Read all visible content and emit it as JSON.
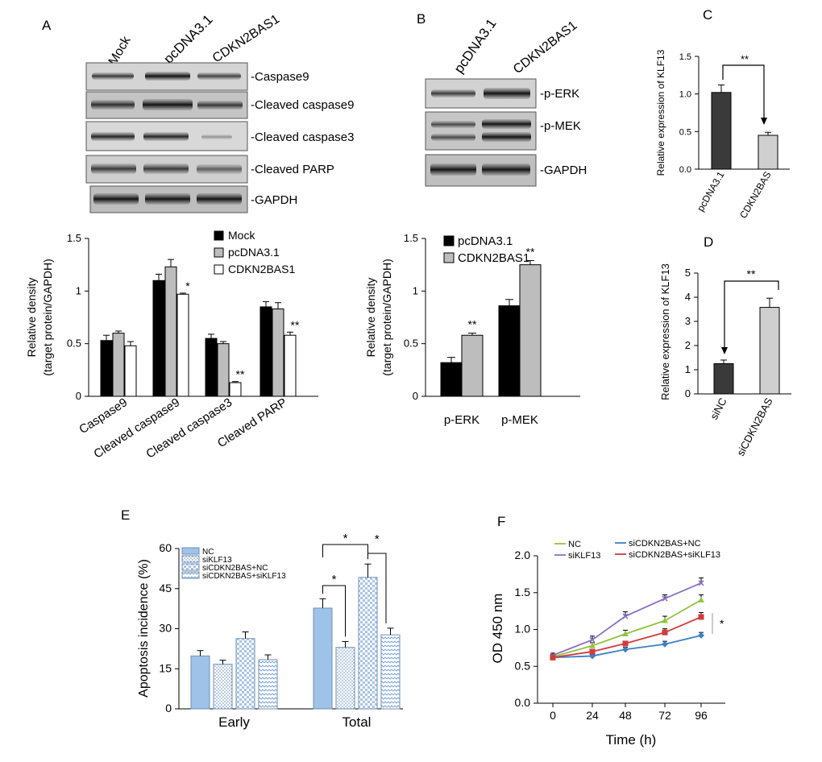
{
  "panel_labels": {
    "A": "A",
    "B": "B",
    "C": "C",
    "D": "D",
    "E": "E",
    "F": "F"
  },
  "blot_a": {
    "lanes": [
      "Mock",
      "pcDNA3.1",
      "CDKN2BAS1"
    ],
    "bands": [
      "-Caspase9",
      "-Cleaved caspase9",
      "-Cleaved caspase3",
      "-Cleaved PARP",
      "-GAPDH"
    ]
  },
  "blot_b": {
    "lanes": [
      "pcDNA3.1",
      "CDKN2BAS1"
    ],
    "bands": [
      "-p-ERK",
      "-p-MEK",
      "-GAPDH"
    ]
  },
  "colors": {
    "black": "#000000",
    "gray": "#bdbdbd",
    "white": "#ffffff",
    "dark": "#3a3a3a",
    "light": "#cfcfcf",
    "blue": "#9fc3e8",
    "nc": "#8dc63f",
    "siklf13": "#8a6fc4",
    "sicdkn_nc": "#3d7fc4",
    "sicdkn_siklf13": "#d23b3b"
  },
  "chart_data": [
    {
      "id": "A",
      "type": "bar",
      "categories": [
        "Caspase9",
        "Cleaved caspase9",
        "Cleaved caspase3",
        "Cleaved PARP"
      ],
      "series": [
        {
          "name": "Mock",
          "values": [
            0.53,
            1.1,
            0.55,
            0.85
          ],
          "errors": [
            0.05,
            0.06,
            0.04,
            0.05
          ]
        },
        {
          "name": "pcDNA3.1",
          "values": [
            0.6,
            1.23,
            0.5,
            0.83
          ],
          "errors": [
            0.02,
            0.07,
            0.02,
            0.06
          ]
        },
        {
          "name": "CDKN2BAS1",
          "values": [
            0.48,
            0.97,
            0.13,
            0.58
          ],
          "errors": [
            0.04,
            0.01,
            0.01,
            0.03
          ]
        }
      ],
      "annotations": [
        {
          "category": 1,
          "series": 2,
          "text": "*"
        },
        {
          "category": 2,
          "series": 2,
          "text": "**"
        },
        {
          "category": 3,
          "series": 2,
          "text": "**"
        }
      ],
      "ylabel_line1": "Relative density",
      "ylabel_line2": "(target protein/GAPDH)",
      "ylim": [
        0,
        1.5
      ],
      "yticks": [
        "0",
        "0.5",
        "1",
        "1.5"
      ],
      "legend": "top-right"
    },
    {
      "id": "B",
      "type": "bar",
      "categories": [
        "p-ERK",
        "p-MEK"
      ],
      "series": [
        {
          "name": "pcDNA3.1",
          "values": [
            0.32,
            0.86
          ],
          "errors": [
            0.05,
            0.06
          ]
        },
        {
          "name": "CDKN2BAS1",
          "values": [
            0.58,
            1.25
          ],
          "errors": [
            0.02,
            0.04
          ]
        }
      ],
      "annotations": [
        {
          "category": 0,
          "series": 1,
          "text": "**"
        },
        {
          "category": 1,
          "series": 1,
          "text": "**"
        }
      ],
      "ylabel_line1": "Relative density",
      "ylabel_line2": "(target protein/GAPDH)",
      "ylim": [
        0,
        1.5
      ],
      "yticks": [
        "0",
        "0.5",
        "1",
        "1.5"
      ],
      "legend": "top-left"
    },
    {
      "id": "C",
      "type": "bar",
      "categories": [
        "pcDNA3.1",
        "CDKN2BAS"
      ],
      "values": [
        1.02,
        0.45
      ],
      "errors": [
        0.1,
        0.04
      ],
      "ylabel": "Relative expression of KLF13",
      "ylim": [
        0,
        1.5
      ],
      "yticks": [
        "0.0",
        "0.5",
        "1.0",
        "1.5"
      ],
      "significance": "**"
    },
    {
      "id": "D",
      "type": "bar",
      "categories": [
        "siNC",
        "siCDKN2BAS"
      ],
      "values": [
        1.25,
        3.58
      ],
      "errors": [
        0.15,
        0.38
      ],
      "ylabel": "Relative expression of KLF13",
      "ylim": [
        0,
        5
      ],
      "yticks": [
        "0",
        "1",
        "2",
        "3",
        "4",
        "5"
      ],
      "significance": "**"
    },
    {
      "id": "E",
      "type": "bar",
      "categories": [
        "Early",
        "Total"
      ],
      "series": [
        {
          "name": "NC",
          "values": [
            19.8,
            37.7
          ],
          "errors": [
            2.0,
            3.5
          ]
        },
        {
          "name": "siKLF13",
          "values": [
            16.7,
            23.0
          ],
          "errors": [
            1.5,
            2.2
          ]
        },
        {
          "name": "siCDKN2BAS+NC",
          "values": [
            26.3,
            49.2
          ],
          "errors": [
            2.5,
            5.0
          ]
        },
        {
          "name": "siCDKN2BAS+siKLF13",
          "values": [
            18.4,
            27.7
          ],
          "errors": [
            1.8,
            2.5
          ]
        }
      ],
      "ylabel": "Apoptosis incidence (%)",
      "ylim": [
        0,
        60
      ],
      "yticks": [
        "0",
        "15",
        "30",
        "45",
        "60"
      ],
      "significance": [
        "*",
        "*",
        "*"
      ],
      "legend": "top-left"
    },
    {
      "id": "F",
      "type": "line",
      "x": [
        0,
        24,
        48,
        72,
        96
      ],
      "xticks": [
        "0",
        "24",
        "48",
        "72",
        "96"
      ],
      "series": [
        {
          "name": "NC",
          "values": [
            0.63,
            0.78,
            0.94,
            1.12,
            1.4
          ],
          "errors": [
            0.03,
            0.04,
            0.05,
            0.06,
            0.07
          ]
        },
        {
          "name": "siKLF13",
          "values": [
            0.65,
            0.86,
            1.18,
            1.42,
            1.63
          ],
          "errors": [
            0.03,
            0.05,
            0.06,
            0.05,
            0.07
          ]
        },
        {
          "name": "siCDKN2BAS+NC",
          "values": [
            0.62,
            0.64,
            0.73,
            0.8,
            0.92
          ],
          "errors": [
            0.02,
            0.02,
            0.03,
            0.04,
            0.04
          ]
        },
        {
          "name": "siCDKN2BAS+siKLF13",
          "values": [
            0.62,
            0.7,
            0.81,
            0.96,
            1.17
          ],
          "errors": [
            0.02,
            0.03,
            0.03,
            0.05,
            0.06
          ]
        }
      ],
      "xlabel": "Time (h)",
      "ylabel": "OD 450 nm",
      "ylim": [
        0,
        2.0
      ],
      "yticks": [
        "0.0",
        "0.5",
        "1.0",
        "1.5",
        "2.0"
      ],
      "significance": "*",
      "legend": "top"
    }
  ]
}
